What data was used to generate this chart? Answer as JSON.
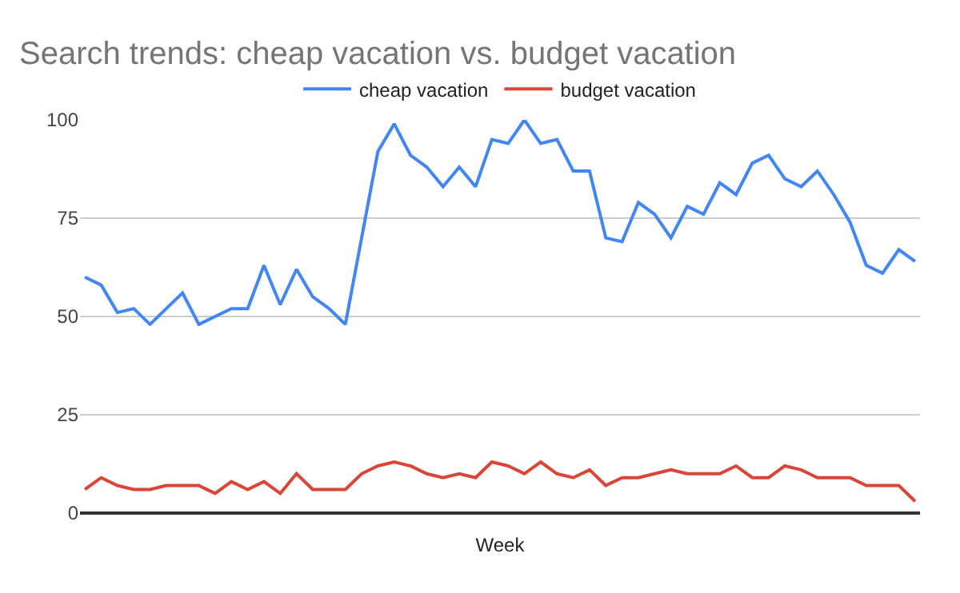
{
  "chart_data": {
    "type": "line",
    "title": "Search trends: cheap vacation vs. budget vacation",
    "xlabel": "Week",
    "categories": [
      null,
      null,
      null,
      null,
      null,
      null,
      null,
      null,
      null,
      null,
      null,
      null,
      null,
      null,
      null,
      null,
      null,
      null,
      null,
      null,
      null,
      null,
      null,
      null,
      null,
      null,
      null,
      null,
      null,
      null,
      null,
      null,
      null,
      null,
      null,
      null,
      null,
      null,
      null,
      null,
      null,
      null,
      null,
      null,
      null,
      null,
      null,
      null,
      null,
      null,
      null,
      null
    ],
    "series": [
      {
        "name": "cheap vacation",
        "color": "#4285f4",
        "values": [
          60,
          58,
          51,
          52,
          48,
          52,
          56,
          48,
          50,
          52,
          52,
          63,
          53,
          62,
          55,
          52,
          48,
          70,
          92,
          99,
          91,
          88,
          83,
          88,
          83,
          95,
          94,
          100,
          94,
          95,
          87,
          87,
          70,
          69,
          79,
          76,
          70,
          78,
          76,
          84,
          81,
          89,
          91,
          85,
          83,
          87,
          81,
          74,
          63,
          61,
          67,
          64
        ]
      },
      {
        "name": "budget vacation",
        "color": "#db4437",
        "values": [
          6,
          9,
          7,
          6,
          6,
          7,
          7,
          7,
          5,
          8,
          6,
          8,
          5,
          10,
          6,
          6,
          6,
          10,
          12,
          13,
          12,
          10,
          9,
          10,
          9,
          13,
          12,
          10,
          13,
          10,
          9,
          11,
          7,
          9,
          9,
          10,
          11,
          10,
          10,
          10,
          12,
          9,
          9,
          12,
          11,
          9,
          9,
          9,
          7,
          7,
          7,
          3
        ]
      }
    ],
    "ylim": [
      0,
      100
    ],
    "yticks": [
      0,
      25,
      50,
      75,
      100
    ],
    "grid": "y",
    "legend": "top",
    "marker": "none",
    "line_style": "solid"
  }
}
